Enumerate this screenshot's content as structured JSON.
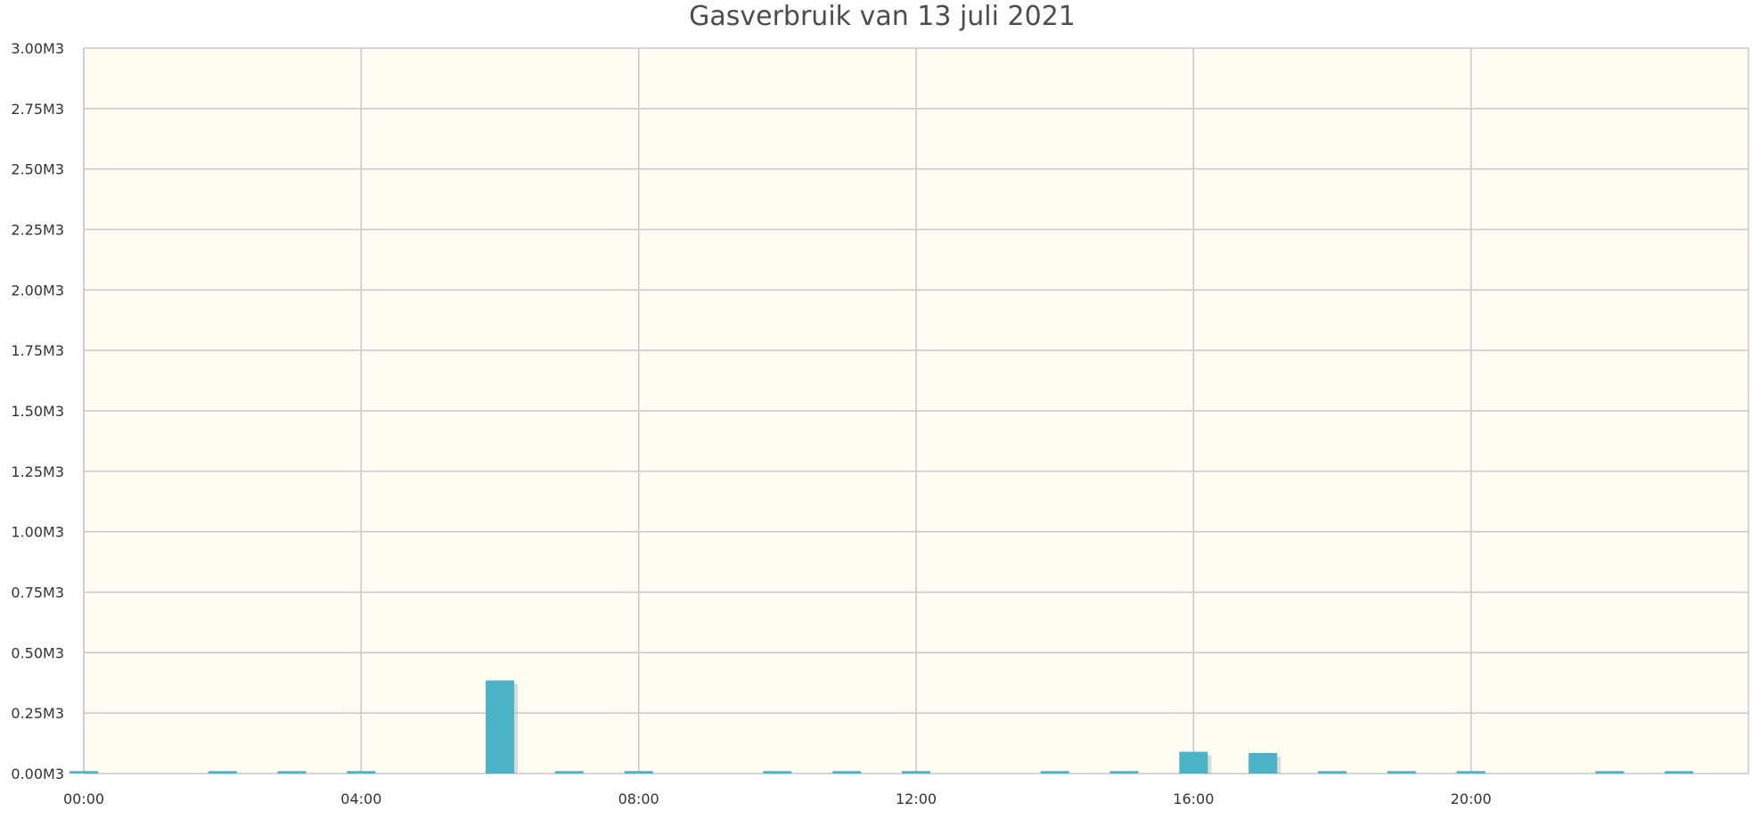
{
  "colors": {
    "plot_background": "#fefcf3",
    "grid": "#c8c8c8",
    "bar": "#4cb2c5",
    "bar_shadow": "#9a9a9a",
    "text": "#333333",
    "title": "#4d4d4d"
  },
  "chart_data": {
    "type": "bar",
    "title": "Gasverbruik van 13 juli 2021",
    "xlabel": "",
    "ylabel": "",
    "unit": "M3",
    "ylim": [
      0,
      3.0
    ],
    "y_ticks": [
      "0.00M3",
      "0.25M3",
      "0.50M3",
      "0.75M3",
      "1.00M3",
      "1.25M3",
      "1.50M3",
      "1.75M3",
      "2.00M3",
      "2.25M3",
      "2.50M3",
      "2.75M3",
      "3.00M3"
    ],
    "x_range_hours": [
      0,
      24
    ],
    "x_ticks": [
      "00:00",
      "04:00",
      "08:00",
      "12:00",
      "16:00",
      "20:00"
    ],
    "grid": true,
    "legend": "none",
    "series": [
      {
        "x": [
          "00:00",
          "01:00",
          "02:00",
          "03:00",
          "04:00",
          "05:00",
          "06:00",
          "07:00",
          "08:00",
          "09:00",
          "10:00",
          "11:00",
          "12:00",
          "13:00",
          "14:00",
          "15:00",
          "16:00",
          "17:00",
          "18:00",
          "19:00",
          "20:00",
          "21:00",
          "22:00",
          "23:00"
        ],
        "values": [
          0.01,
          0,
          0.01,
          0.01,
          0.01,
          0,
          0.385,
          0.01,
          0.01,
          0,
          0.01,
          0.01,
          0.01,
          0,
          0.01,
          0.01,
          0.09,
          0.085,
          0.01,
          0.01,
          0.01,
          0,
          0.01,
          0.01
        ]
      }
    ]
  }
}
